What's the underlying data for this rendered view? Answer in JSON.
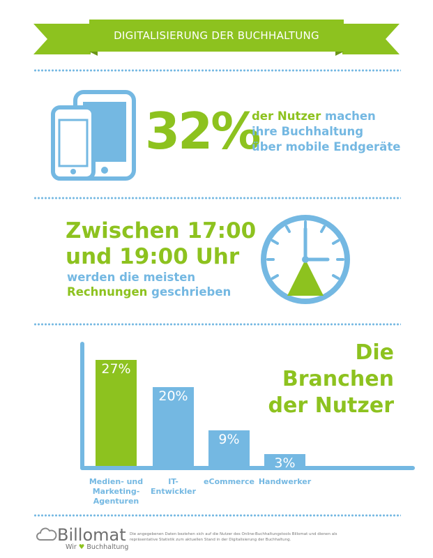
{
  "banner": {
    "title": "DIGITALISIERUNG DER BUCHHALTUNG"
  },
  "mobile": {
    "percent": "32%",
    "line1_green": "der Nutzer",
    "line1_blue": "machen",
    "line2": "ihre Buchhaltung",
    "line3": "über mobile Endgeräte"
  },
  "time": {
    "headline_line1": "Zwischen 17:00",
    "headline_line2": "und 19:00 Uhr",
    "sub_line1": "werden die meisten",
    "sub_line2_green": "Rechnungen",
    "sub_line2_blue": "geschrieben"
  },
  "branches": {
    "title_line1": "Die Branchen",
    "title_line2": "der Nutzer"
  },
  "chart_data": {
    "type": "bar",
    "title": "Die Branchen der Nutzer",
    "categories": [
      "Medien- und Marketing-Agenturen",
      "IT-Entwickler",
      "eCommerce",
      "Handwerker"
    ],
    "category_lines": [
      [
        "Medien- und",
        "Marketing-",
        "Agenturen"
      ],
      [
        "IT-",
        "Entwickler"
      ],
      [
        "eCommerce"
      ],
      [
        "Handwerker"
      ]
    ],
    "values": [
      27,
      20,
      9,
      3
    ],
    "value_labels": [
      "27%",
      "20%",
      "9%",
      "3%"
    ],
    "unit": "%",
    "colors": [
      "#8dc21f",
      "#74b8e2",
      "#74b8e2",
      "#74b8e2"
    ],
    "ylim": [
      0,
      27
    ],
    "grid": false,
    "legend": "none"
  },
  "footer": {
    "logo_name": "Billomat",
    "tagline_prefix": "Wir",
    "tagline_suffix": "Buchhaltung",
    "footnote": "Die angegebenen Daten beziehen sich auf die Nutzer des Online-Buchhaltungstools Billomat und dienen als repräsentative Statistik zum aktuellen Stand in der Digitalisierung der Buchhaltung."
  },
  "colors": {
    "green": "#8dc21f",
    "blue": "#74b8e2",
    "dark_green": "#6c9616",
    "gray": "#6e6e6e"
  },
  "icons": [
    "devices-icon",
    "clock-icon",
    "cloud-logo-icon",
    "heart-icon"
  ]
}
